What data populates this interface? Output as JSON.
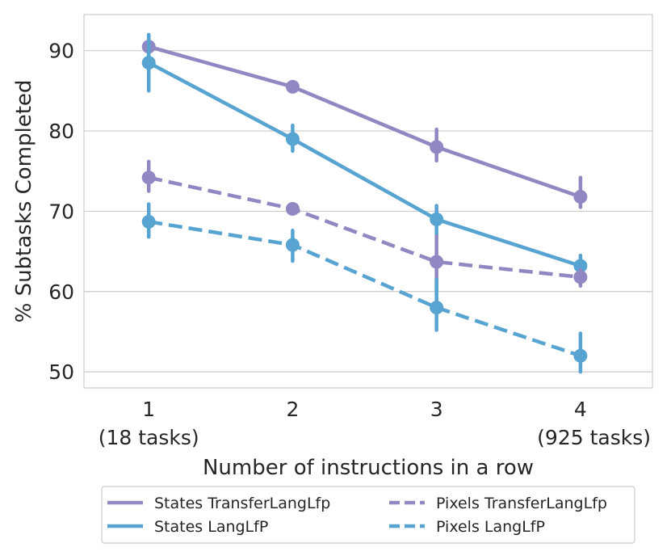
{
  "chart_data": {
    "type": "line",
    "xlabel": "Number of instructions in a row",
    "ylabel": "% Subtasks Completed",
    "x": [
      1,
      2,
      3,
      4
    ],
    "x_tick_labels": [
      "1",
      "2",
      "3",
      "4"
    ],
    "x_tick_sublabels": [
      "(18 tasks)",
      "",
      "",
      "(925 tasks)"
    ],
    "xlim": [
      0.55,
      4.5
    ],
    "y_ticks": [
      50,
      60,
      70,
      80,
      90
    ],
    "ylim": [
      48,
      94.5
    ],
    "grid": "horizontal",
    "legend_placement": "bottom-center, below axis label",
    "series": [
      {
        "name": "States TransferLangLfp",
        "color": "#9187c3",
        "dash": "solid",
        "values": [
          90.5,
          85.5,
          78.0,
          71.8
        ],
        "ci": [
          [
            89.0,
            91.8
          ],
          [
            85.0,
            86.0
          ],
          [
            76.3,
            80.2
          ],
          [
            70.5,
            74.2
          ]
        ]
      },
      {
        "name": "States LangLfP",
        "color": "#57a3d1",
        "dash": "solid",
        "values": [
          88.5,
          79.0,
          69.0,
          63.2
        ],
        "ci": [
          [
            85.0,
            92.0
          ],
          [
            77.5,
            80.7
          ],
          [
            67.0,
            70.7
          ],
          [
            62.0,
            64.5
          ]
        ]
      },
      {
        "name": "Pixels TransferLangLfp",
        "color": "#9187c3",
        "dash": "dashed",
        "values": [
          74.2,
          70.3,
          63.7,
          61.8
        ],
        "ci": [
          [
            72.5,
            76.2
          ],
          [
            70.0,
            70.7
          ],
          [
            60.0,
            66.9
          ],
          [
            60.7,
            62.7
          ]
        ]
      },
      {
        "name": "Pixels LangLfP",
        "color": "#57a3d1",
        "dash": "dashed",
        "values": [
          68.7,
          65.8,
          58.0,
          52.0
        ],
        "ci": [
          [
            66.8,
            70.9
          ],
          [
            63.8,
            67.6
          ],
          [
            55.2,
            61.5
          ],
          [
            50.0,
            54.8
          ]
        ]
      }
    ]
  }
}
